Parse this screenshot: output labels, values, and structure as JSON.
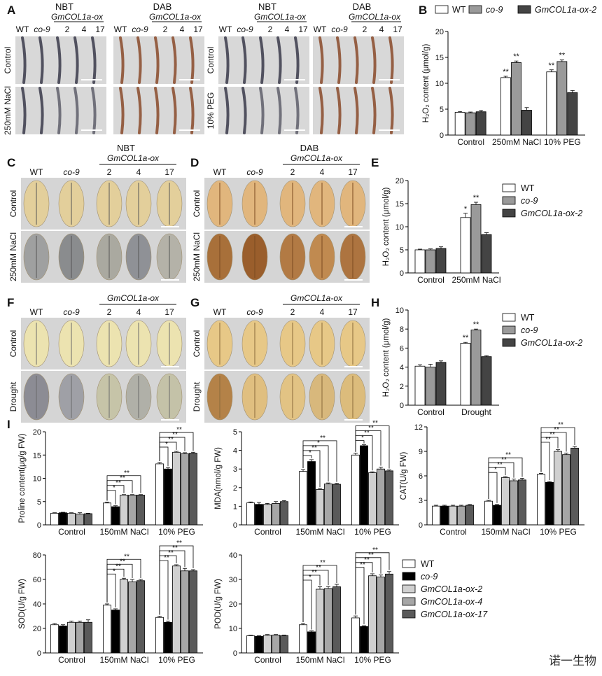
{
  "panel_letters": [
    "A",
    "B",
    "C",
    "D",
    "E",
    "F",
    "G",
    "H",
    "I"
  ],
  "photo_labels": {
    "A": {
      "stains": [
        "NBT",
        "DAB",
        "NBT",
        "DAB"
      ],
      "transgenic": "GmCOL1a-ox",
      "genotypes": [
        "WT",
        "co-9",
        "2",
        "4",
        "17"
      ],
      "rows_left": [
        "Control",
        "250mM NaCl"
      ],
      "rows_right": [
        "Control",
        "10% PEG"
      ]
    },
    "C": {
      "stain": "NBT",
      "transgenic": "GmCOL1a-ox",
      "genotypes": [
        "WT",
        "co-9",
        "2",
        "4",
        "17"
      ],
      "rows": [
        "Control",
        "250mM NaCl"
      ]
    },
    "D": {
      "stain": "DAB",
      "transgenic": "GmCOL1a-ox",
      "genotypes": [
        "WT",
        "co-9",
        "2",
        "4",
        "17"
      ],
      "rows": [
        "Control",
        "250mM NaCl"
      ]
    },
    "F": {
      "transgenic": "GmCOL1a-ox",
      "genotypes": [
        "WT",
        "co-9",
        "2",
        "4",
        "17"
      ],
      "rows": [
        "Control",
        "Drought"
      ]
    },
    "G": {
      "transgenic": "GmCOL1a-ox",
      "genotypes": [
        "WT",
        "co-9",
        "2",
        "4",
        "17"
      ],
      "rows": [
        "Control",
        "Drought"
      ]
    }
  },
  "watermark": "诺一生物",
  "colors": {
    "wt": "#ffffff",
    "co9_3": "#9a9a9a",
    "ox_3": "#444444",
    "co9_5": "#000000",
    "ox2_5": "#d0d0d0",
    "ox4_5": "#a6a6a6",
    "ox17_5": "#5a5a5a",
    "root_bg": "#d8d8d8",
    "leaf_bg": "#d5d5d5"
  },
  "chart_data": [
    {
      "id": "B",
      "type": "bar",
      "categories": [
        "Control",
        "250mM NaCl",
        "10% PEG"
      ],
      "series": [
        {
          "name": "WT",
          "values": [
            4.4,
            11.1,
            12.2
          ],
          "errors": [
            0.15,
            0.25,
            0.4
          ]
        },
        {
          "name": "co-9",
          "values": [
            4.3,
            14.0,
            14.2
          ],
          "errors": [
            0.15,
            0.3,
            0.3
          ]
        },
        {
          "name": "GmCOL1a-ox-2",
          "values": [
            4.5,
            4.8,
            8.2
          ],
          "errors": [
            0.25,
            0.5,
            0.4
          ]
        }
      ],
      "significance": [
        [
          "",
          "**",
          "**"
        ],
        [
          "",
          "**",
          "**"
        ],
        [
          "",
          "",
          ""
        ]
      ],
      "ylabel": "H₂O₂ content (μmol/g)",
      "yticks": [
        0,
        5,
        10,
        15,
        20
      ],
      "ylim": [
        0,
        20
      ]
    },
    {
      "id": "E",
      "type": "bar",
      "categories": [
        "Control",
        "250mM NaCl"
      ],
      "series": [
        {
          "name": "WT",
          "values": [
            5.0,
            12.0
          ],
          "errors": [
            0.15,
            0.9
          ]
        },
        {
          "name": "co-9",
          "values": [
            5.0,
            14.8
          ],
          "errors": [
            0.2,
            0.5
          ]
        },
        {
          "name": "GmCOL1a-ox-2",
          "values": [
            5.3,
            8.3
          ],
          "errors": [
            0.35,
            0.4
          ]
        }
      ],
      "significance": [
        [
          "",
          "*"
        ],
        [
          "",
          "**"
        ]
      ],
      "ylabel": "H₂O₂ content (μmol/g)",
      "yticks": [
        0,
        5,
        10,
        15,
        20
      ],
      "ylim": [
        0,
        20
      ]
    },
    {
      "id": "H",
      "type": "bar",
      "categories": [
        "Control",
        "Drought"
      ],
      "series": [
        {
          "name": "WT",
          "values": [
            4.1,
            6.5
          ],
          "errors": [
            0.15,
            0.1
          ]
        },
        {
          "name": "co-9",
          "values": [
            4.0,
            7.9
          ],
          "errors": [
            0.3,
            0.1
          ]
        },
        {
          "name": "GmCOL1a-ox-2",
          "values": [
            4.5,
            5.1
          ],
          "errors": [
            0.15,
            0.1
          ]
        }
      ],
      "significance": [
        [
          "",
          "**"
        ],
        [
          "",
          "**"
        ]
      ],
      "ylabel": "H₂O₂ content (μmol/g)",
      "yticks": [
        0,
        2,
        4,
        6,
        8,
        10
      ],
      "ylim": [
        0,
        10
      ]
    },
    {
      "id": "I1",
      "type": "bar",
      "categories": [
        "Control",
        "150mM NaCl",
        "10% PEG"
      ],
      "series": [
        {
          "name": "WT",
          "values": [
            2.5,
            4.7,
            13.1
          ],
          "errors": [
            0.1,
            0.2,
            0.3
          ]
        },
        {
          "name": "co-9",
          "values": [
            2.6,
            3.9,
            12.0
          ],
          "errors": [
            0.1,
            0.2,
            0.3
          ]
        },
        {
          "name": "GmCOL1a-ox-2",
          "values": [
            2.5,
            6.4,
            15.6
          ],
          "errors": [
            0.1,
            0.1,
            0.2
          ]
        },
        {
          "name": "GmCOL1a-ox-4",
          "values": [
            2.3,
            6.4,
            15.3
          ],
          "errors": [
            0.3,
            0.1,
            0.2
          ]
        },
        {
          "name": "GmCOL1a-ox-17",
          "values": [
            2.4,
            6.4,
            15.4
          ],
          "errors": [
            0.1,
            0.1,
            0.2
          ]
        }
      ],
      "sig_brackets": [
        [
          "*",
          "**",
          "**",
          "**"
        ],
        [
          "*",
          "**",
          "**",
          "**"
        ]
      ],
      "ylabel": "Proline content(μg/g FW)",
      "yticks": [
        0,
        5,
        10,
        15,
        20
      ],
      "ylim": [
        0,
        20
      ]
    },
    {
      "id": "I2",
      "type": "bar",
      "categories": [
        "Control",
        "150mM NaCl",
        "10% PEG"
      ],
      "series": [
        {
          "name": "WT",
          "values": [
            1.18,
            2.87,
            3.75
          ],
          "errors": [
            0.05,
            0.1,
            0.1
          ]
        },
        {
          "name": "co-9",
          "values": [
            1.1,
            3.4,
            4.25
          ],
          "errors": [
            0.1,
            0.1,
            0.05
          ]
        },
        {
          "name": "GmCOL1a-ox-2",
          "values": [
            1.1,
            1.9,
            2.8
          ],
          "errors": [
            0.05,
            0.05,
            0.05
          ]
        },
        {
          "name": "GmCOL1a-ox-4",
          "values": [
            1.15,
            2.2,
            3.0
          ],
          "errors": [
            0.1,
            0.05,
            0.1
          ]
        },
        {
          "name": "GmCOL1a-ox-17",
          "values": [
            1.25,
            2.18,
            2.9
          ],
          "errors": [
            0.05,
            0.05,
            0.05
          ]
        }
      ],
      "sig_brackets": [
        [
          "*",
          "**",
          "*",
          "**"
        ],
        [
          "*",
          "**",
          "**",
          "**"
        ]
      ],
      "ylabel": "MDA(nmol/g FW)",
      "yticks": [
        0,
        1,
        2,
        3,
        4,
        5
      ],
      "ylim": [
        0,
        5
      ]
    },
    {
      "id": "I3",
      "type": "bar",
      "categories": [
        "Control",
        "150mM NaCl",
        "10% PEG"
      ],
      "series": [
        {
          "name": "WT",
          "values": [
            2.3,
            2.9,
            6.2
          ],
          "errors": [
            0.1,
            0.1,
            0.1
          ]
        },
        {
          "name": "co-9",
          "values": [
            2.3,
            2.4,
            5.2
          ],
          "errors": [
            0.1,
            0.1,
            0.1
          ]
        },
        {
          "name": "GmCOL1a-ox-2",
          "values": [
            2.3,
            5.8,
            9.0
          ],
          "errors": [
            0.1,
            0.1,
            0.2
          ]
        },
        {
          "name": "GmCOL1a-ox-4",
          "values": [
            2.3,
            5.4,
            8.6
          ],
          "errors": [
            0.1,
            0.2,
            0.2
          ]
        },
        {
          "name": "GmCOL1a-ox-17",
          "values": [
            2.4,
            5.5,
            9.4
          ],
          "errors": [
            0.1,
            0.2,
            0.2
          ]
        }
      ],
      "sig_brackets": [
        [
          "*",
          "**",
          "**",
          "**"
        ],
        [
          "**",
          "**",
          "**",
          "**"
        ]
      ],
      "ylabel": "CAT(U/g FW)",
      "yticks": [
        0,
        3,
        6,
        9,
        12
      ],
      "ylim": [
        0,
        12
      ]
    },
    {
      "id": "I4",
      "type": "bar",
      "categories": [
        "Control",
        "150mM NaCl",
        "10% PEG"
      ],
      "series": [
        {
          "name": "WT",
          "values": [
            23,
            39,
            29
          ],
          "errors": [
            1,
            1,
            1
          ]
        },
        {
          "name": "co-9",
          "values": [
            22,
            35,
            25
          ],
          "errors": [
            1,
            1,
            1
          ]
        },
        {
          "name": "GmCOL1a-ox-2",
          "values": [
            25,
            60,
            71
          ],
          "errors": [
            1,
            1,
            1
          ]
        },
        {
          "name": "GmCOL1a-ox-4",
          "values": [
            25,
            58,
            67
          ],
          "errors": [
            1,
            2,
            2
          ]
        },
        {
          "name": "GmCOL1a-ox-17",
          "values": [
            25,
            59,
            67
          ],
          "errors": [
            2,
            1,
            1
          ]
        }
      ],
      "sig_brackets": [
        [
          "*",
          "**",
          "**",
          "**"
        ],
        [
          "**",
          "**",
          "**",
          "**"
        ]
      ],
      "ylabel": "SOD(U/g FW)",
      "yticks": [
        0,
        20,
        40,
        60,
        80
      ],
      "ylim": [
        0,
        80
      ]
    },
    {
      "id": "I5",
      "type": "bar",
      "categories": [
        "Control",
        "150mM NaCl",
        "10% PEG"
      ],
      "series": [
        {
          "name": "WT",
          "values": [
            7.0,
            11.5,
            14.3
          ],
          "errors": [
            0.2,
            0.5,
            0.8
          ]
        },
        {
          "name": "co-9",
          "values": [
            6.8,
            8.6,
            10.8
          ],
          "errors": [
            0.2,
            0.4,
            0.3
          ]
        },
        {
          "name": "GmCOL1a-ox-2",
          "values": [
            7.2,
            26.0,
            31.5
          ],
          "errors": [
            0.3,
            1.0,
            0.8
          ]
        },
        {
          "name": "GmCOL1a-ox-4",
          "values": [
            7.3,
            26.3,
            31.0
          ],
          "errors": [
            0.2,
            0.8,
            0.8
          ]
        },
        {
          "name": "GmCOL1a-ox-17",
          "values": [
            7.1,
            27.0,
            32.2
          ],
          "errors": [
            0.2,
            1.0,
            1.0
          ]
        }
      ],
      "sig_brackets": [
        [
          "*",
          "**",
          "**",
          "**"
        ],
        [
          "**",
          "**",
          "**",
          "**"
        ]
      ],
      "ylabel": "POD(U/g FW)",
      "yticks": [
        0,
        10,
        20,
        30,
        40
      ],
      "ylim": [
        0,
        40
      ]
    }
  ],
  "legend_3": [
    "WT",
    "co-9",
    "GmCOL1a-ox-2"
  ],
  "legend_5": [
    "WT",
    "co-9",
    "GmCOL1a-ox-2",
    "GmCOL1a-ox-4",
    "GmCOL1a-ox-17"
  ]
}
